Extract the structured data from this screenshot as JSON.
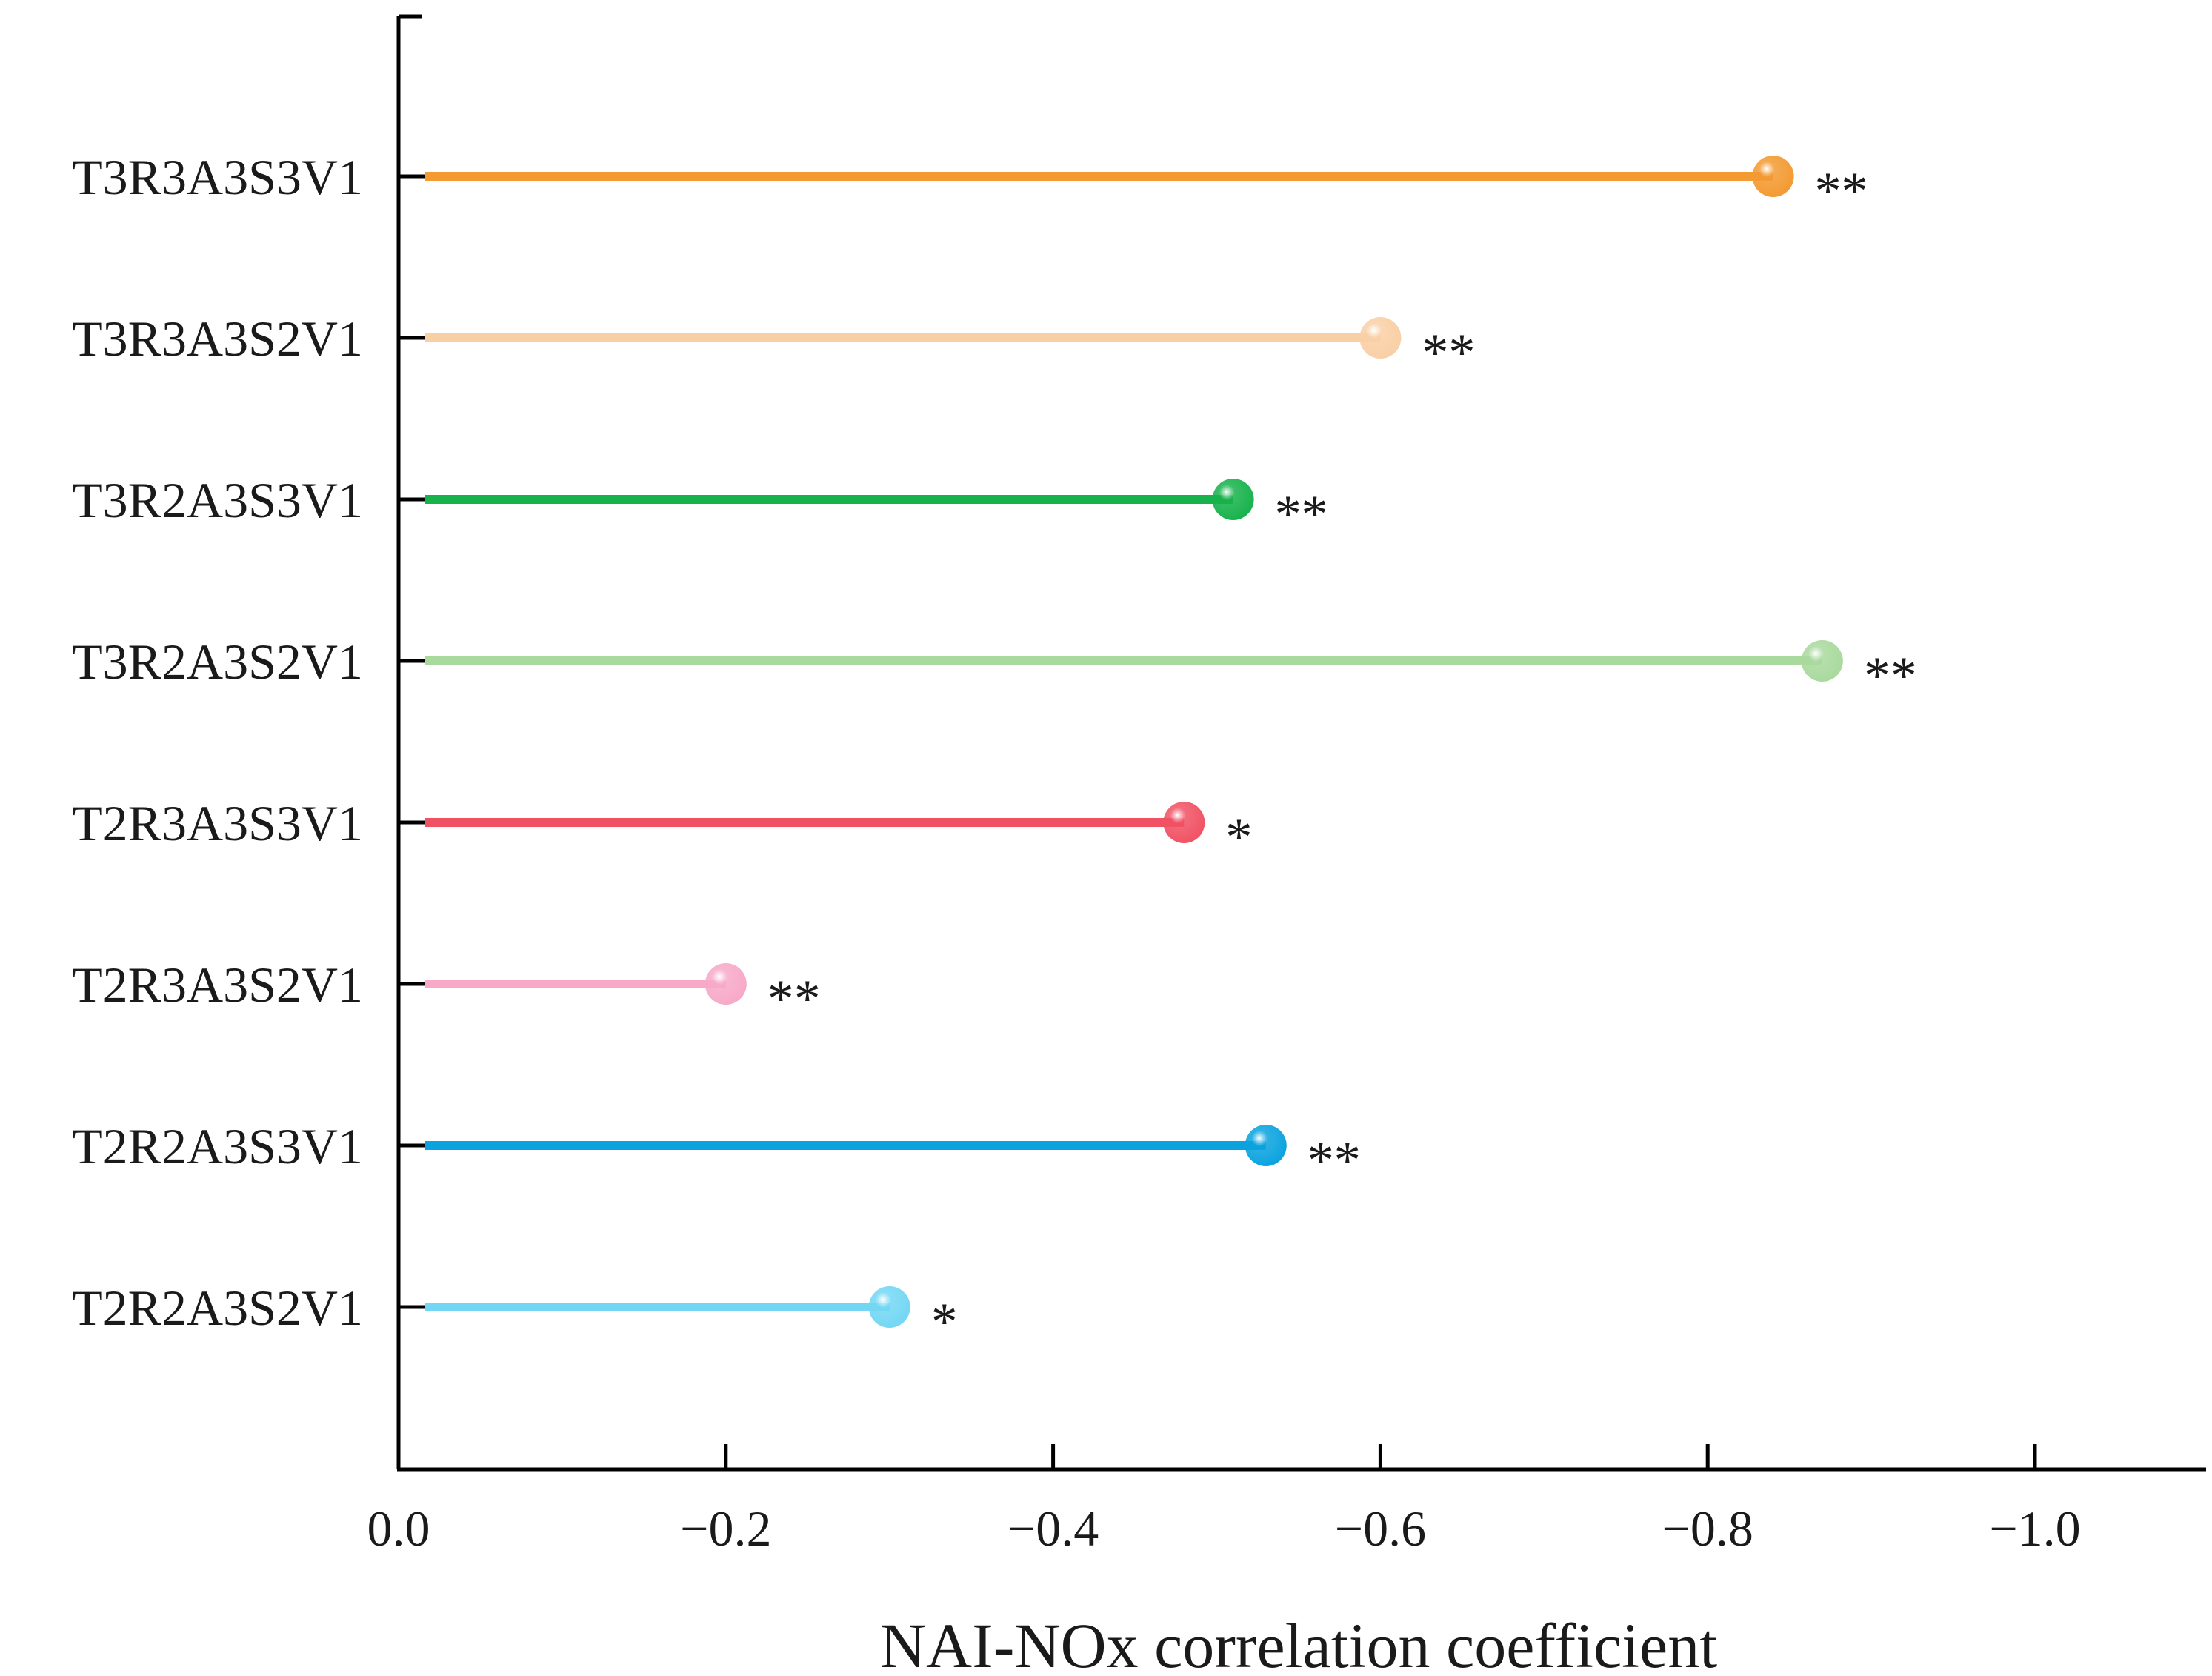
{
  "chart_data": {
    "type": "lollipop",
    "orientation": "horizontal",
    "title": "",
    "xlabel": "NAI-NOx correlation coefficient",
    "ylabel": "",
    "xlim": [
      0,
      -1.1
    ],
    "xticks": [
      0.0,
      -0.2,
      -0.4,
      -0.6,
      -0.8,
      -1.0
    ],
    "xtick_labels": [
      "0.0",
      "−0.2",
      "−0.4",
      "−0.6",
      "−0.8",
      "−1.0"
    ],
    "grid": false,
    "legend": "none",
    "categories": [
      "T3R3A3S3V1",
      "T3R3A3S2V1",
      "T3R2A3S3V1",
      "T3R2A3S2V1",
      "T2R3A3S3V1",
      "T2R3A3S2V1",
      "T2R2A3S3V1",
      "T2R2A3S2V1"
    ],
    "values": [
      -0.84,
      -0.6,
      -0.51,
      -0.87,
      -0.48,
      -0.2,
      -0.53,
      -0.3
    ],
    "significance": [
      "**",
      "**",
      "**",
      "**",
      "*",
      "**",
      "**",
      "*"
    ],
    "colors": [
      "#F39A32",
      "#F9CFA5",
      "#17B24C",
      "#A9D99D",
      "#F05264",
      "#F7A9C7",
      "#0AA3DF",
      "#73D7F4"
    ]
  }
}
